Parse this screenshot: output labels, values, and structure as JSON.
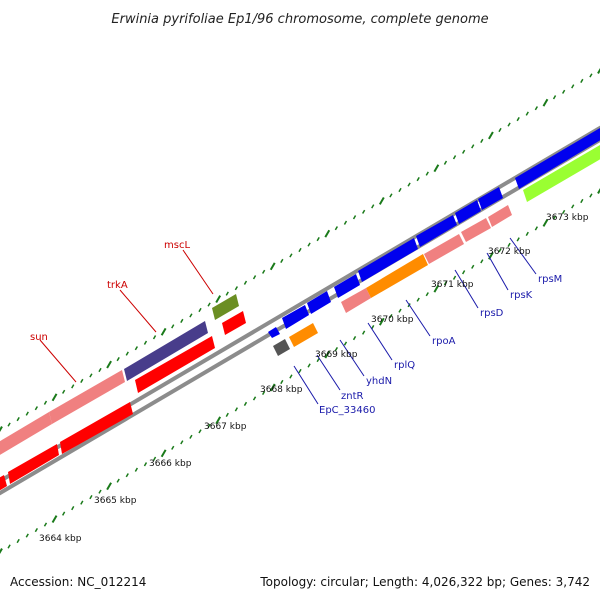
{
  "title": "Erwinia pyrifoliae Ep1/96 chromosome, complete genome",
  "footer": {
    "accession": "Accession: NC_012214",
    "summary": "Topology: circular; Length: 4,026,322 bp; Genes: 3,742"
  },
  "colors": {
    "backbone": "#8c8c8c",
    "tick": "#1a7a1a",
    "label_red": "#cc0000",
    "label_blue": "#1a1aaa",
    "red_gene": "#ff0000",
    "pink_gene": "#f08080",
    "blue_gene": "#0000ee",
    "orange_gene": "#ff8c00",
    "navy_gene": "#483d8b",
    "olive_gene": "#6b8e23",
    "dark_gene": "#555555",
    "lime_gene": "#9aff32"
  },
  "kbp_labels": [
    "3664 kbp",
    "3665 kbp",
    "3666 kbp",
    "3667 kbp",
    "3668 kbp",
    "3669 kbp",
    "3670 kbp",
    "3671 kbp",
    "3672 kbp",
    "3673 kbp"
  ],
  "gene_labels": [
    {
      "text": "sun",
      "color": "label_red"
    },
    {
      "text": "trkA",
      "color": "label_red"
    },
    {
      "text": "mscL",
      "color": "label_red"
    },
    {
      "text": "EpC_33460",
      "color": "label_blue"
    },
    {
      "text": "zntR",
      "color": "label_blue"
    },
    {
      "text": "yhdN",
      "color": "label_blue"
    },
    {
      "text": "rplQ",
      "color": "label_blue"
    },
    {
      "text": "rpoA",
      "color": "label_blue"
    },
    {
      "text": "rpsD",
      "color": "label_blue"
    },
    {
      "text": "rpsK",
      "color": "label_blue"
    },
    {
      "text": "rpsM",
      "color": "label_blue"
    }
  ]
}
